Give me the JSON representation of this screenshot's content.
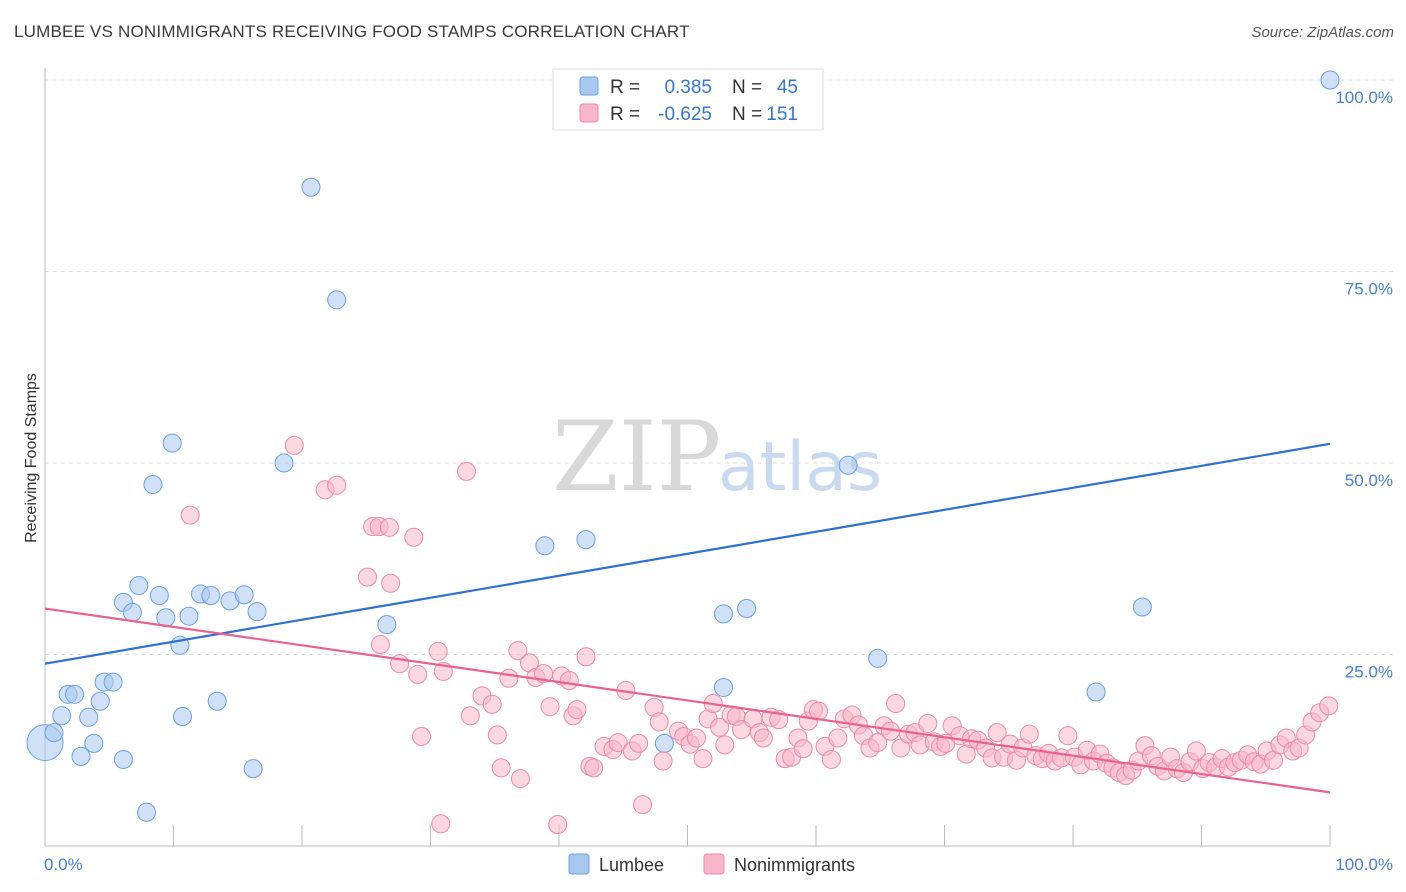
{
  "header": {
    "title": "LUMBEE VS NONIMMIGRANTS RECEIVING FOOD STAMPS CORRELATION CHART",
    "source": "Source: ZipAtlas.com"
  },
  "watermark": {
    "zip": "ZIP",
    "atlas": "atlas"
  },
  "legend": {
    "rows": [
      {
        "r_label": "R =",
        "r_value": "0.385",
        "n_label": "N =",
        "n_value": "45",
        "color": "#a9c8f0"
      },
      {
        "r_label": "R =",
        "r_value": "-0.625",
        "n_label": "N =",
        "n_value": "151",
        "color": "#f7b6c9"
      }
    ]
  },
  "bottom_legend": {
    "items": [
      "Lumbee",
      "Nonimmigrants"
    ]
  },
  "chart_data": {
    "type": "scatter",
    "title": "LUMBEE VS NONIMMIGRANTS RECEIVING FOOD STAMPS CORRELATION CHART",
    "xlabel": "",
    "ylabel": "Receiving Food Stamps",
    "xlim": [
      0,
      100
    ],
    "ylim": [
      0,
      100
    ],
    "x_tick_labels": [
      "0.0%",
      "100.0%"
    ],
    "y_ticks": [
      25,
      50,
      75,
      100
    ],
    "y_tick_labels": [
      "25.0%",
      "50.0%",
      "75.0%",
      "100.0%"
    ],
    "grid": true,
    "legend_position": "top-center",
    "series": [
      {
        "name": "Lumbee",
        "color": "#a9c8f0",
        "edge_color": "#6a9fe0",
        "trend_color": "#2f6fd0",
        "trend": {
          "x": [
            0,
            100
          ],
          "y": [
            23.8,
            52.5
          ]
        },
        "points": [
          [
            0,
            13.5
          ],
          [
            0.7,
            14.8
          ],
          [
            1.3,
            17.0
          ],
          [
            1.8,
            19.8
          ],
          [
            2.3,
            19.8
          ],
          [
            2.8,
            11.7
          ],
          [
            3.4,
            16.8
          ],
          [
            3.8,
            13.4
          ],
          [
            4.3,
            18.9
          ],
          [
            4.6,
            21.4
          ],
          [
            5.3,
            21.4
          ],
          [
            6.1,
            11.3
          ],
          [
            6.1,
            31.8
          ],
          [
            6.8,
            30.5
          ],
          [
            7.3,
            34.0
          ],
          [
            7.9,
            4.4
          ],
          [
            8.4,
            47.2
          ],
          [
            8.9,
            32.7
          ],
          [
            9.4,
            29.8
          ],
          [
            9.9,
            52.6
          ],
          [
            10.5,
            26.2
          ],
          [
            10.7,
            16.9
          ],
          [
            11.2,
            30.0
          ],
          [
            12.1,
            32.9
          ],
          [
            12.9,
            32.7
          ],
          [
            13.4,
            18.9
          ],
          [
            14.4,
            32.0
          ],
          [
            15.5,
            32.8
          ],
          [
            16.2,
            10.1
          ],
          [
            16.5,
            30.6
          ],
          [
            18.6,
            50.0
          ],
          [
            20.7,
            86.0
          ],
          [
            22.7,
            71.3
          ],
          [
            26.6,
            28.9
          ],
          [
            38.9,
            39.2
          ],
          [
            42.1,
            40.0
          ],
          [
            48.2,
            13.4
          ],
          [
            52.8,
            30.3
          ],
          [
            54.6,
            31.0
          ],
          [
            52.8,
            20.7
          ],
          [
            62.5,
            49.7
          ],
          [
            64.8,
            24.5
          ],
          [
            81.8,
            20.1
          ],
          [
            85.4,
            31.2
          ],
          [
            100,
            100
          ]
        ]
      },
      {
        "name": "Nonimmigrants",
        "color": "#f7b6c9",
        "edge_color": "#ea8aa8",
        "trend_color": "#e8618f",
        "trend": {
          "x": [
            0,
            100
          ],
          "y": [
            31.0,
            7.0
          ]
        },
        "points": [
          [
            11.3,
            43.2
          ],
          [
            19.4,
            52.3
          ],
          [
            21.8,
            46.5
          ],
          [
            22.7,
            47.1
          ],
          [
            25.5,
            41.7
          ],
          [
            26.0,
            41.7
          ],
          [
            26.8,
            41.6
          ],
          [
            25.1,
            35.1
          ],
          [
            26.1,
            26.3
          ],
          [
            26.9,
            34.3
          ],
          [
            27.6,
            23.8
          ],
          [
            28.7,
            40.3
          ],
          [
            29.0,
            22.4
          ],
          [
            29.3,
            14.3
          ],
          [
            30.6,
            25.4
          ],
          [
            31.0,
            22.8
          ],
          [
            30.8,
            2.9
          ],
          [
            32.8,
            48.9
          ],
          [
            33.1,
            17.0
          ],
          [
            34.0,
            19.6
          ],
          [
            34.8,
            18.5
          ],
          [
            35.2,
            14.5
          ],
          [
            35.5,
            10.2
          ],
          [
            36.1,
            21.9
          ],
          [
            36.8,
            25.5
          ],
          [
            37.0,
            8.8
          ],
          [
            37.7,
            23.9
          ],
          [
            38.2,
            22.0
          ],
          [
            38.8,
            22.5
          ],
          [
            39.3,
            18.2
          ],
          [
            39.9,
            2.8
          ],
          [
            40.2,
            22.2
          ],
          [
            40.8,
            21.6
          ],
          [
            41.1,
            17.0
          ],
          [
            41.4,
            17.8
          ],
          [
            42.1,
            24.7
          ],
          [
            42.4,
            10.4
          ],
          [
            42.7,
            10.2
          ],
          [
            43.5,
            13.0
          ],
          [
            44.2,
            12.6
          ],
          [
            44.6,
            13.5
          ],
          [
            45.2,
            20.3
          ],
          [
            45.7,
            12.4
          ],
          [
            46.2,
            13.4
          ],
          [
            46.5,
            5.4
          ],
          [
            47.4,
            18.1
          ],
          [
            47.8,
            16.2
          ],
          [
            48.1,
            11.1
          ],
          [
            49.3,
            15.0
          ],
          [
            49.7,
            14.3
          ],
          [
            50.2,
            13.3
          ],
          [
            50.7,
            14.1
          ],
          [
            51.2,
            11.4
          ],
          [
            51.6,
            16.6
          ],
          [
            52.0,
            18.6
          ],
          [
            52.5,
            15.5
          ],
          [
            52.9,
            13.2
          ],
          [
            53.4,
            17.1
          ],
          [
            53.8,
            16.9
          ],
          [
            54.2,
            15.2
          ],
          [
            55.1,
            16.6
          ],
          [
            55.6,
            14.8
          ],
          [
            55.9,
            14.1
          ],
          [
            56.5,
            16.8
          ],
          [
            57.1,
            16.5
          ],
          [
            57.6,
            11.4
          ],
          [
            58.1,
            11.6
          ],
          [
            58.6,
            14.1
          ],
          [
            59.0,
            12.7
          ],
          [
            59.4,
            16.3
          ],
          [
            59.8,
            17.8
          ],
          [
            60.2,
            17.6
          ],
          [
            60.7,
            13.0
          ],
          [
            61.2,
            11.3
          ],
          [
            61.7,
            14.1
          ],
          [
            62.2,
            16.6
          ],
          [
            62.8,
            17.1
          ],
          [
            63.3,
            15.8
          ],
          [
            63.7,
            14.4
          ],
          [
            64.2,
            12.8
          ],
          [
            64.8,
            13.5
          ],
          [
            65.3,
            15.7
          ],
          [
            65.8,
            15.0
          ],
          [
            66.2,
            18.6
          ],
          [
            66.6,
            12.8
          ],
          [
            67.2,
            14.6
          ],
          [
            67.7,
            14.8
          ],
          [
            68.1,
            13.2
          ],
          [
            68.7,
            16.0
          ],
          [
            69.2,
            13.6
          ],
          [
            69.7,
            13.0
          ],
          [
            70.1,
            13.4
          ],
          [
            70.6,
            15.7
          ],
          [
            71.2,
            14.4
          ],
          [
            71.7,
            12.0
          ],
          [
            72.1,
            14.0
          ],
          [
            72.6,
            13.8
          ],
          [
            73.2,
            12.8
          ],
          [
            73.7,
            11.5
          ],
          [
            74.1,
            14.8
          ],
          [
            74.6,
            11.6
          ],
          [
            75.1,
            13.3
          ],
          [
            75.6,
            11.2
          ],
          [
            76.1,
            12.8
          ],
          [
            76.6,
            14.6
          ],
          [
            77.1,
            11.8
          ],
          [
            77.6,
            11.4
          ],
          [
            78.1,
            12.1
          ],
          [
            78.6,
            11.1
          ],
          [
            79.1,
            11.5
          ],
          [
            79.6,
            14.4
          ],
          [
            80.1,
            11.6
          ],
          [
            80.6,
            10.6
          ],
          [
            81.1,
            12.5
          ],
          [
            81.6,
            11.1
          ],
          [
            82.1,
            12.0
          ],
          [
            82.6,
            10.8
          ],
          [
            83.1,
            10.2
          ],
          [
            83.6,
            9.6
          ],
          [
            84.1,
            9.2
          ],
          [
            84.6,
            9.9
          ],
          [
            85.1,
            11.1
          ],
          [
            85.6,
            13.1
          ],
          [
            86.1,
            11.8
          ],
          [
            86.6,
            10.4
          ],
          [
            87.1,
            9.8
          ],
          [
            87.6,
            11.6
          ],
          [
            88.1,
            10.1
          ],
          [
            88.6,
            9.6
          ],
          [
            89.1,
            11.0
          ],
          [
            89.6,
            12.4
          ],
          [
            90.1,
            10.1
          ],
          [
            90.6,
            10.9
          ],
          [
            91.1,
            10.3
          ],
          [
            91.6,
            11.4
          ],
          [
            92.1,
            10.3
          ],
          [
            92.6,
            10.9
          ],
          [
            93.1,
            11.2
          ],
          [
            93.6,
            11.9
          ],
          [
            94.1,
            11.0
          ],
          [
            94.6,
            10.7
          ],
          [
            95.1,
            12.4
          ],
          [
            95.6,
            11.2
          ],
          [
            96.1,
            13.2
          ],
          [
            96.6,
            14.1
          ],
          [
            97.1,
            12.4
          ],
          [
            97.6,
            12.8
          ],
          [
            98.1,
            14.5
          ],
          [
            98.6,
            16.2
          ],
          [
            99.2,
            17.4
          ],
          [
            99.9,
            18.3
          ]
        ]
      }
    ]
  }
}
